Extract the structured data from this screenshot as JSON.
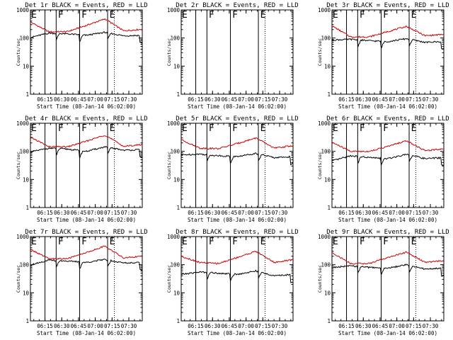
{
  "figure": {
    "background": "#ffffff",
    "foreground": "#000000",
    "events_color": "#000000",
    "lld_color": "#cc0000"
  },
  "chart_data": [
    {
      "type": "line",
      "title": "Det 1r BLACK = Events, RED = LLD",
      "xlabel": "Start Time (08-Jan-14 06:02:00)",
      "ylabel": "Counts/sec",
      "yscale": "log",
      "ylim": [
        1,
        1000
      ],
      "xlim": [
        "06:02",
        "07:42"
      ],
      "x_ticks": [
        "06:15",
        "06:30",
        "06:45",
        "07:00",
        "07:15",
        "07:30"
      ],
      "y_ticks": [
        "1",
        "10",
        "100",
        "1000"
      ],
      "has_data": true,
      "events_base": [
        105,
        150,
        140,
        125,
        160,
        120,
        125
      ],
      "lld_base": [
        370,
        165,
        170,
        280,
        480,
        180,
        205
      ],
      "vlines_solid": [
        "06:15",
        "06:25",
        "06:46",
        "07:11"
      ],
      "vlines_dotted": [
        "07:17"
      ],
      "markers": [
        {
          "label": "E",
          "x": "06:02"
        },
        {
          "label": "F",
          "x": "06:26"
        },
        {
          "label": "F",
          "x": "06:47"
        },
        {
          "label": "E",
          "x": "07:12"
        }
      ]
    },
    {
      "type": "line",
      "title": "Det 2r BLACK = Events, RED = LLD",
      "xlabel": "Start Time (08-Jan-14 06:02:00)",
      "ylabel": "Counts/sec",
      "yscale": "log",
      "ylim": [
        1,
        1000
      ],
      "xlim": [
        "06:02",
        "07:42"
      ],
      "x_ticks": [
        "06:15",
        "06:30",
        "06:45",
        "07:00",
        "07:15",
        "07:30"
      ],
      "y_ticks": [
        "1",
        "10",
        "100",
        "1000"
      ],
      "has_data": false,
      "vlines_solid": [
        "06:15",
        "06:25",
        "06:46",
        "07:11"
      ],
      "vlines_dotted": [
        "07:17"
      ],
      "markers": [
        {
          "label": "E",
          "x": "06:02"
        },
        {
          "label": "F",
          "x": "06:26"
        },
        {
          "label": "F",
          "x": "06:47"
        },
        {
          "label": "E",
          "x": "07:12"
        }
      ]
    },
    {
      "type": "line",
      "title": "Det 3r BLACK = Events, RED = LLD",
      "xlabel": "Start Time (08-Jan-14 06:02:00)",
      "ylabel": "Counts/sec",
      "yscale": "log",
      "ylim": [
        1,
        1000
      ],
      "xlim": [
        "06:02",
        "07:42"
      ],
      "x_ticks": [
        "06:15",
        "06:30",
        "06:45",
        "07:00",
        "07:15",
        "07:30"
      ],
      "y_ticks": [
        "1",
        "10",
        "100",
        "1000"
      ],
      "has_data": true,
      "events_base": [
        85,
        90,
        80,
        75,
        95,
        70,
        75
      ],
      "lld_base": [
        270,
        110,
        110,
        170,
        260,
        120,
        135
      ],
      "vlines_solid": [
        "06:15",
        "06:25",
        "06:46",
        "07:11"
      ],
      "vlines_dotted": [
        "07:17"
      ],
      "markers": [
        {
          "label": "E",
          "x": "06:02"
        },
        {
          "label": "F",
          "x": "06:26"
        },
        {
          "label": "F",
          "x": "06:47"
        },
        {
          "label": "E",
          "x": "07:12"
        }
      ]
    },
    {
      "type": "line",
      "title": "Det 4r BLACK = Events, RED = LLD",
      "xlabel": "Start Time (08-Jan-14 06:02:00)",
      "ylabel": "Counts/sec",
      "yscale": "log",
      "ylim": [
        1,
        1000
      ],
      "xlim": [
        "06:02",
        "07:42"
      ],
      "x_ticks": [
        "06:15",
        "06:30",
        "06:45",
        "07:00",
        "07:15",
        "07:30"
      ],
      "y_ticks": [
        "1",
        "10",
        "100",
        "1000"
      ],
      "has_data": true,
      "events_base": [
        95,
        130,
        120,
        100,
        145,
        110,
        115
      ],
      "lld_base": [
        320,
        145,
        145,
        230,
        380,
        150,
        175
      ],
      "vlines_solid": [
        "06:15",
        "06:25",
        "06:46",
        "07:11"
      ],
      "vlines_dotted": [
        "07:17"
      ],
      "markers": [
        {
          "label": "E",
          "x": "06:02"
        },
        {
          "label": "F",
          "x": "06:26"
        },
        {
          "label": "F",
          "x": "06:47"
        },
        {
          "label": "E",
          "x": "07:12"
        }
      ]
    },
    {
      "type": "line",
      "title": "Det 5r BLACK = Events, RED = LLD",
      "xlabel": "Start Time (08-Jan-14 06:02:00)",
      "ylabel": "Counts/sec",
      "yscale": "log",
      "ylim": [
        1,
        1000
      ],
      "xlim": [
        "06:02",
        "07:42"
      ],
      "x_ticks": [
        "06:15",
        "06:30",
        "06:45",
        "07:00",
        "07:15",
        "07:30"
      ],
      "y_ticks": [
        "1",
        "10",
        "100",
        "1000"
      ],
      "has_data": true,
      "events_base": [
        75,
        80,
        70,
        65,
        85,
        60,
        65
      ],
      "lld_base": [
        260,
        130,
        125,
        190,
        300,
        130,
        160
      ],
      "vlines_solid": [
        "06:15",
        "06:25",
        "06:46",
        "07:11"
      ],
      "vlines_dotted": [
        "07:17"
      ],
      "markers": [
        {
          "label": "E",
          "x": "06:02"
        },
        {
          "label": "F",
          "x": "06:26"
        },
        {
          "label": "F",
          "x": "06:47"
        },
        {
          "label": "E",
          "x": "07:12"
        }
      ]
    },
    {
      "type": "line",
      "title": "Det 6r BLACK = Events, RED = LLD",
      "xlabel": "Start Time (08-Jan-14 06:02:00)",
      "ylabel": "Counts/sec",
      "yscale": "log",
      "ylim": [
        1,
        1000
      ],
      "xlim": [
        "06:02",
        "07:42"
      ],
      "x_ticks": [
        "06:15",
        "06:30",
        "06:45",
        "07:00",
        "07:15",
        "07:30"
      ],
      "y_ticks": [
        "1",
        "10",
        "100",
        "1000"
      ],
      "has_data": true,
      "events_base": [
        45,
        70,
        60,
        55,
        80,
        55,
        60
      ],
      "lld_base": [
        210,
        100,
        100,
        150,
        240,
        105,
        125
      ],
      "vlines_solid": [
        "06:15",
        "06:25",
        "06:46",
        "07:11"
      ],
      "vlines_dotted": [
        "07:17"
      ],
      "markers": [
        {
          "label": "E",
          "x": "06:02"
        },
        {
          "label": "F",
          "x": "06:26"
        },
        {
          "label": "F",
          "x": "06:47"
        },
        {
          "label": "E",
          "x": "07:12"
        }
      ]
    },
    {
      "type": "line",
      "title": "Det 7r BLACK = Events, RED = LLD",
      "xlabel": "Start Time (08-Jan-14 06:02:00)",
      "ylabel": "Counts/sec",
      "yscale": "log",
      "ylim": [
        1,
        1000
      ],
      "xlim": [
        "06:02",
        "07:42"
      ],
      "x_ticks": [
        "06:15",
        "06:30",
        "06:45",
        "07:00",
        "07:15",
        "07:30"
      ],
      "y_ticks": [
        "1",
        "10",
        "100",
        "1000"
      ],
      "has_data": true,
      "events_base": [
        100,
        145,
        135,
        120,
        155,
        115,
        120
      ],
      "lld_base": [
        350,
        160,
        165,
        270,
        460,
        175,
        200
      ],
      "vlines_solid": [
        "06:15",
        "06:25",
        "06:46",
        "07:11"
      ],
      "vlines_dotted": [
        "07:17"
      ],
      "markers": [
        {
          "label": "E",
          "x": "06:02"
        },
        {
          "label": "F",
          "x": "06:26"
        },
        {
          "label": "F",
          "x": "06:47"
        },
        {
          "label": "E",
          "x": "07:12"
        }
      ]
    },
    {
      "type": "line",
      "title": "Det 8r BLACK = Events, RED = LLD",
      "xlabel": "Start Time (08-Jan-14 06:02:00)",
      "ylabel": "Counts/sec",
      "yscale": "log",
      "ylim": [
        1,
        1000
      ],
      "xlim": [
        "06:02",
        "07:42"
      ],
      "x_ticks": [
        "06:15",
        "06:30",
        "06:45",
        "07:00",
        "07:15",
        "07:30"
      ],
      "y_ticks": [
        "1",
        "10",
        "100",
        "1000"
      ],
      "has_data": true,
      "events_base": [
        45,
        55,
        50,
        45,
        60,
        40,
        45
      ],
      "lld_base": [
        200,
        120,
        110,
        180,
        300,
        120,
        150
      ],
      "vlines_solid": [
        "06:15",
        "06:25",
        "06:46",
        "07:11"
      ],
      "vlines_dotted": [
        "07:17"
      ],
      "markers": [
        {
          "label": "E",
          "x": "06:02"
        },
        {
          "label": "F",
          "x": "06:26"
        },
        {
          "label": "F",
          "x": "06:47"
        },
        {
          "label": "E",
          "x": "07:12"
        }
      ]
    },
    {
      "type": "line",
      "title": "Det 9r BLACK = Events, RED = LLD",
      "xlabel": "Start Time (08-Jan-14 06:02:00)",
      "ylabel": "Counts/sec",
      "yscale": "log",
      "ylim": [
        1,
        1000
      ],
      "xlim": [
        "06:02",
        "07:42"
      ],
      "x_ticks": [
        "06:15",
        "06:30",
        "06:45",
        "07:00",
        "07:15",
        "07:30"
      ],
      "y_ticks": [
        "1",
        "10",
        "100",
        "1000"
      ],
      "has_data": true,
      "events_base": [
        80,
        90,
        80,
        75,
        100,
        70,
        75
      ],
      "lld_base": [
        270,
        110,
        110,
        180,
        280,
        120,
        140
      ],
      "vlines_solid": [
        "06:15",
        "06:25",
        "06:46",
        "07:11"
      ],
      "vlines_dotted": [
        "07:17"
      ],
      "markers": [
        {
          "label": "E",
          "x": "06:02"
        },
        {
          "label": "F",
          "x": "06:26"
        },
        {
          "label": "F",
          "x": "06:47"
        },
        {
          "label": "E",
          "x": "07:12"
        }
      ]
    }
  ]
}
